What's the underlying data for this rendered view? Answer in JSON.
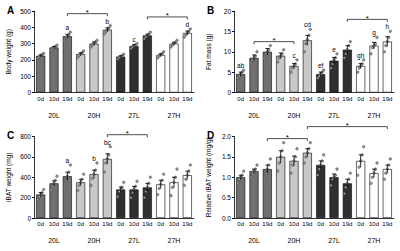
{
  "chart_data": [
    {
      "type": "bar",
      "title": "A",
      "y_label": "Body weight (g)",
      "groups": [
        "20L",
        "20H",
        "27L",
        "27H"
      ],
      "categories": [
        "0d",
        "10d",
        "19d"
      ],
      "ylim": [
        0,
        500
      ],
      "yticks": [
        0,
        100,
        200,
        300,
        400,
        500
      ],
      "series": [
        {
          "name": "20L",
          "color": "#707070",
          "values": [
            225,
            276,
            345
          ],
          "errors": [
            6,
            6,
            12
          ],
          "letters": [
            null,
            null,
            "a"
          ],
          "points": [
            [
              210,
              218,
              225,
              232,
              240
            ],
            [
              262,
              270,
              276,
              282,
              290
            ],
            [
              320,
              335,
              345,
              355,
              370
            ]
          ]
        },
        {
          "name": "20H",
          "color": "#c8c8c8",
          "values": [
            236,
            300,
            385
          ],
          "errors": [
            8,
            10,
            12
          ],
          "letters": [
            null,
            null,
            "b"
          ],
          "points": [
            [
              215,
              228,
              236,
              245,
              255
            ],
            [
              280,
              292,
              300,
              310,
              320
            ],
            [
              360,
              375,
              385,
              395,
              410
            ]
          ]
        },
        {
          "name": "27L",
          "color": "#303030",
          "values": [
            220,
            285,
            350
          ],
          "errors": [
            6,
            8,
            8
          ],
          "letters": [
            null,
            "c",
            null
          ],
          "points": [
            [
              205,
              214,
              220,
              226,
              235
            ],
            [
              270,
              280,
              285,
              292,
              300
            ],
            [
              330,
              342,
              350,
              358,
              370
            ]
          ]
        },
        {
          "name": "27H",
          "color": "#ffffff",
          "values": [
            230,
            300,
            365
          ],
          "errors": [
            8,
            8,
            12
          ],
          "letters": [
            null,
            null,
            "d"
          ],
          "points": [
            [
              212,
              224,
              230,
              238,
              250
            ],
            [
              280,
              292,
              300,
              308,
              320
            ],
            [
              340,
              355,
              365,
              375,
              390
            ]
          ]
        }
      ],
      "brackets": [
        {
          "from": [
            0,
            2
          ],
          "to": [
            1,
            2
          ],
          "label": "*"
        },
        {
          "from": [
            2,
            2
          ],
          "to": [
            3,
            2
          ],
          "label": "*"
        }
      ]
    },
    {
      "type": "bar",
      "title": "B",
      "y_label": "Fat mass (g)",
      "groups": [
        "20L",
        "20H",
        "27L",
        "27H"
      ],
      "categories": [
        "0d",
        "10d",
        "19d"
      ],
      "ylim": [
        0,
        20
      ],
      "yticks": [
        0,
        5,
        10,
        15,
        20
      ],
      "series": [
        {
          "name": "20L",
          "color": "#707070",
          "values": [
            4.5,
            8.5,
            10
          ],
          "errors": [
            0.5,
            0.7,
            0.8
          ],
          "letters": [
            "ab",
            null,
            null
          ],
          "points": [
            [
              3.5,
              4,
              4.5,
              5,
              5.5
            ],
            [
              7,
              8,
              8.5,
              9,
              10
            ],
            [
              8.5,
              9.5,
              10,
              10.5,
              11.5
            ]
          ]
        },
        {
          "name": "20H",
          "color": "#c8c8c8",
          "values": [
            9,
            6.5,
            12.8
          ],
          "errors": [
            0.7,
            0.6,
            1.2
          ],
          "letters": [
            null,
            "c",
            "cd"
          ],
          "points": [
            [
              7.5,
              8.5,
              9,
              9.5,
              10.5
            ],
            [
              5,
              6,
              6.5,
              7,
              8
            ],
            [
              10,
              12,
              13,
              14,
              15.5
            ]
          ]
        },
        {
          "name": "27L",
          "color": "#303030",
          "values": [
            4.5,
            7.8,
            10.5
          ],
          "errors": [
            0.5,
            0.8,
            1
          ],
          "letters": [
            "ef",
            "e",
            null
          ],
          "points": [
            [
              3.5,
              4,
              4.5,
              5,
              5.5
            ],
            [
              6,
              7,
              8,
              8.5,
              9.5
            ],
            [
              8.5,
              9.5,
              10.5,
              11.5,
              12.5
            ]
          ]
        },
        {
          "name": "27H",
          "color": "#ffffff",
          "values": [
            6.5,
            11.5,
            12.5
          ],
          "errors": [
            0.6,
            0.8,
            1.2
          ],
          "letters": [
            "gh",
            "g",
            "h"
          ],
          "points": [
            [
              5,
              6,
              6.5,
              7,
              8
            ],
            [
              9.5,
              11,
              11.5,
              12,
              13.5
            ],
            [
              10,
              11.5,
              12.5,
              13.5,
              15
            ]
          ]
        }
      ],
      "brackets": [
        {
          "from": [
            0,
            1
          ],
          "to": [
            1,
            1
          ],
          "label": "*"
        },
        {
          "from": [
            2,
            2
          ],
          "to": [
            3,
            2
          ],
          "label": "*"
        }
      ]
    },
    {
      "type": "bar",
      "title": "C",
      "y_label": "iBAT weight (mg)",
      "groups": [
        "20L",
        "20H",
        "27L",
        "27H"
      ],
      "categories": [
        "0d",
        "10d",
        "19d"
      ],
      "ylim": [
        0,
        800
      ],
      "yticks": [
        0,
        200,
        400,
        600,
        800
      ],
      "series": [
        {
          "name": "20L",
          "color": "#707070",
          "values": [
            230,
            340,
            410
          ],
          "errors": [
            20,
            25,
            40
          ],
          "letters": [
            null,
            null,
            "a"
          ],
          "points": [
            [
              180,
              210,
              230,
              250,
              280
            ],
            [
              270,
              310,
              340,
              370,
              410
            ],
            [
              300,
              370,
              410,
              450,
              520
            ]
          ]
        },
        {
          "name": "20H",
          "color": "#c8c8c8",
          "values": [
            350,
            430,
            580
          ],
          "errors": [
            30,
            40,
            50
          ],
          "letters": [
            null,
            "b",
            "bc"
          ],
          "points": [
            [
              270,
              320,
              350,
              380,
              430
            ],
            [
              320,
              390,
              430,
              470,
              540
            ],
            [
              450,
              540,
              580,
              620,
              700
            ]
          ]
        },
        {
          "name": "27L",
          "color": "#303030",
          "values": [
            280,
            280,
            300
          ],
          "errors": [
            25,
            30,
            40
          ],
          "letters": [
            null,
            null,
            null
          ],
          "points": [
            [
              210,
              260,
              280,
              300,
              350
            ],
            [
              200,
              250,
              280,
              310,
              360
            ],
            [
              200,
              260,
              300,
              340,
              400
            ]
          ]
        },
        {
          "name": "27H",
          "color": "#ffffff",
          "values": [
            330,
            350,
            420
          ],
          "errors": [
            40,
            50,
            40
          ],
          "letters": [
            null,
            null,
            null
          ],
          "points": [
            [
              230,
              290,
              330,
              370,
              430
            ],
            [
              220,
              300,
              350,
              400,
              480
            ],
            [
              320,
              380,
              420,
              460,
              520
            ]
          ]
        }
      ],
      "brackets": [
        {
          "from": [
            1,
            2
          ],
          "to": [
            2,
            2
          ],
          "label": "*"
        }
      ]
    },
    {
      "type": "bar",
      "title": "D",
      "y_label": "Relative iBAT weight (mg/g)",
      "groups": [
        "20L",
        "20H",
        "27L",
        "27H"
      ],
      "categories": [
        "0d",
        "10d",
        "19d"
      ],
      "ylim": [
        0,
        2
      ],
      "yticks": [
        {
          "value": 0,
          "label": "0.0"
        },
        0.5,
        {
          "value": 1,
          "label": "1.0"
        },
        1.5,
        {
          "value": 2,
          "label": "2.0"
        }
      ],
      "series": [
        {
          "name": "20L",
          "color": "#707070",
          "values": [
            1.0,
            1.15,
            1.2
          ],
          "errors": [
            0.05,
            0.05,
            0.1
          ],
          "letters": [
            null,
            null,
            null
          ],
          "points": [
            [
              0.85,
              0.95,
              1.0,
              1.05,
              1.15
            ],
            [
              1.0,
              1.1,
              1.15,
              1.2,
              1.3
            ],
            [
              0.95,
              1.1,
              1.2,
              1.3,
              1.45
            ]
          ]
        },
        {
          "name": "20H",
          "color": "#c8c8c8",
          "values": [
            1.5,
            1.4,
            1.6
          ],
          "errors": [
            0.15,
            0.12,
            0.1
          ],
          "letters": [
            null,
            null,
            null
          ],
          "points": [
            [
              1.15,
              1.35,
              1.5,
              1.65,
              1.85
            ],
            [
              1.1,
              1.3,
              1.4,
              1.5,
              1.7
            ],
            [
              1.35,
              1.5,
              1.6,
              1.7,
              1.85
            ]
          ]
        },
        {
          "name": "27L",
          "color": "#303030",
          "values": [
            1.3,
            1.0,
            0.85
          ],
          "errors": [
            0.1,
            0.08,
            0.1
          ],
          "letters": [
            null,
            null,
            null
          ],
          "points": [
            [
              1.05,
              1.2,
              1.3,
              1.4,
              1.55
            ],
            [
              0.8,
              0.95,
              1.0,
              1.05,
              1.2
            ],
            [
              0.6,
              0.75,
              0.85,
              0.95,
              1.1
            ]
          ]
        },
        {
          "name": "27H",
          "color": "#ffffff",
          "values": [
            1.4,
            1.1,
            1.2
          ],
          "errors": [
            0.15,
            0.1,
            0.1
          ],
          "letters": [
            null,
            null,
            null
          ],
          "points": [
            [
              1.05,
              1.25,
              1.4,
              1.55,
              1.75
            ],
            [
              0.85,
              1.0,
              1.1,
              1.2,
              1.35
            ],
            [
              0.95,
              1.1,
              1.2,
              1.3,
              1.45
            ]
          ]
        }
      ],
      "brackets": [
        {
          "from": [
            0,
            2
          ],
          "to": [
            1,
            2
          ],
          "label": "*"
        },
        {
          "from": [
            1,
            2
          ],
          "to": [
            3,
            2
          ],
          "label": "*"
        }
      ]
    }
  ]
}
